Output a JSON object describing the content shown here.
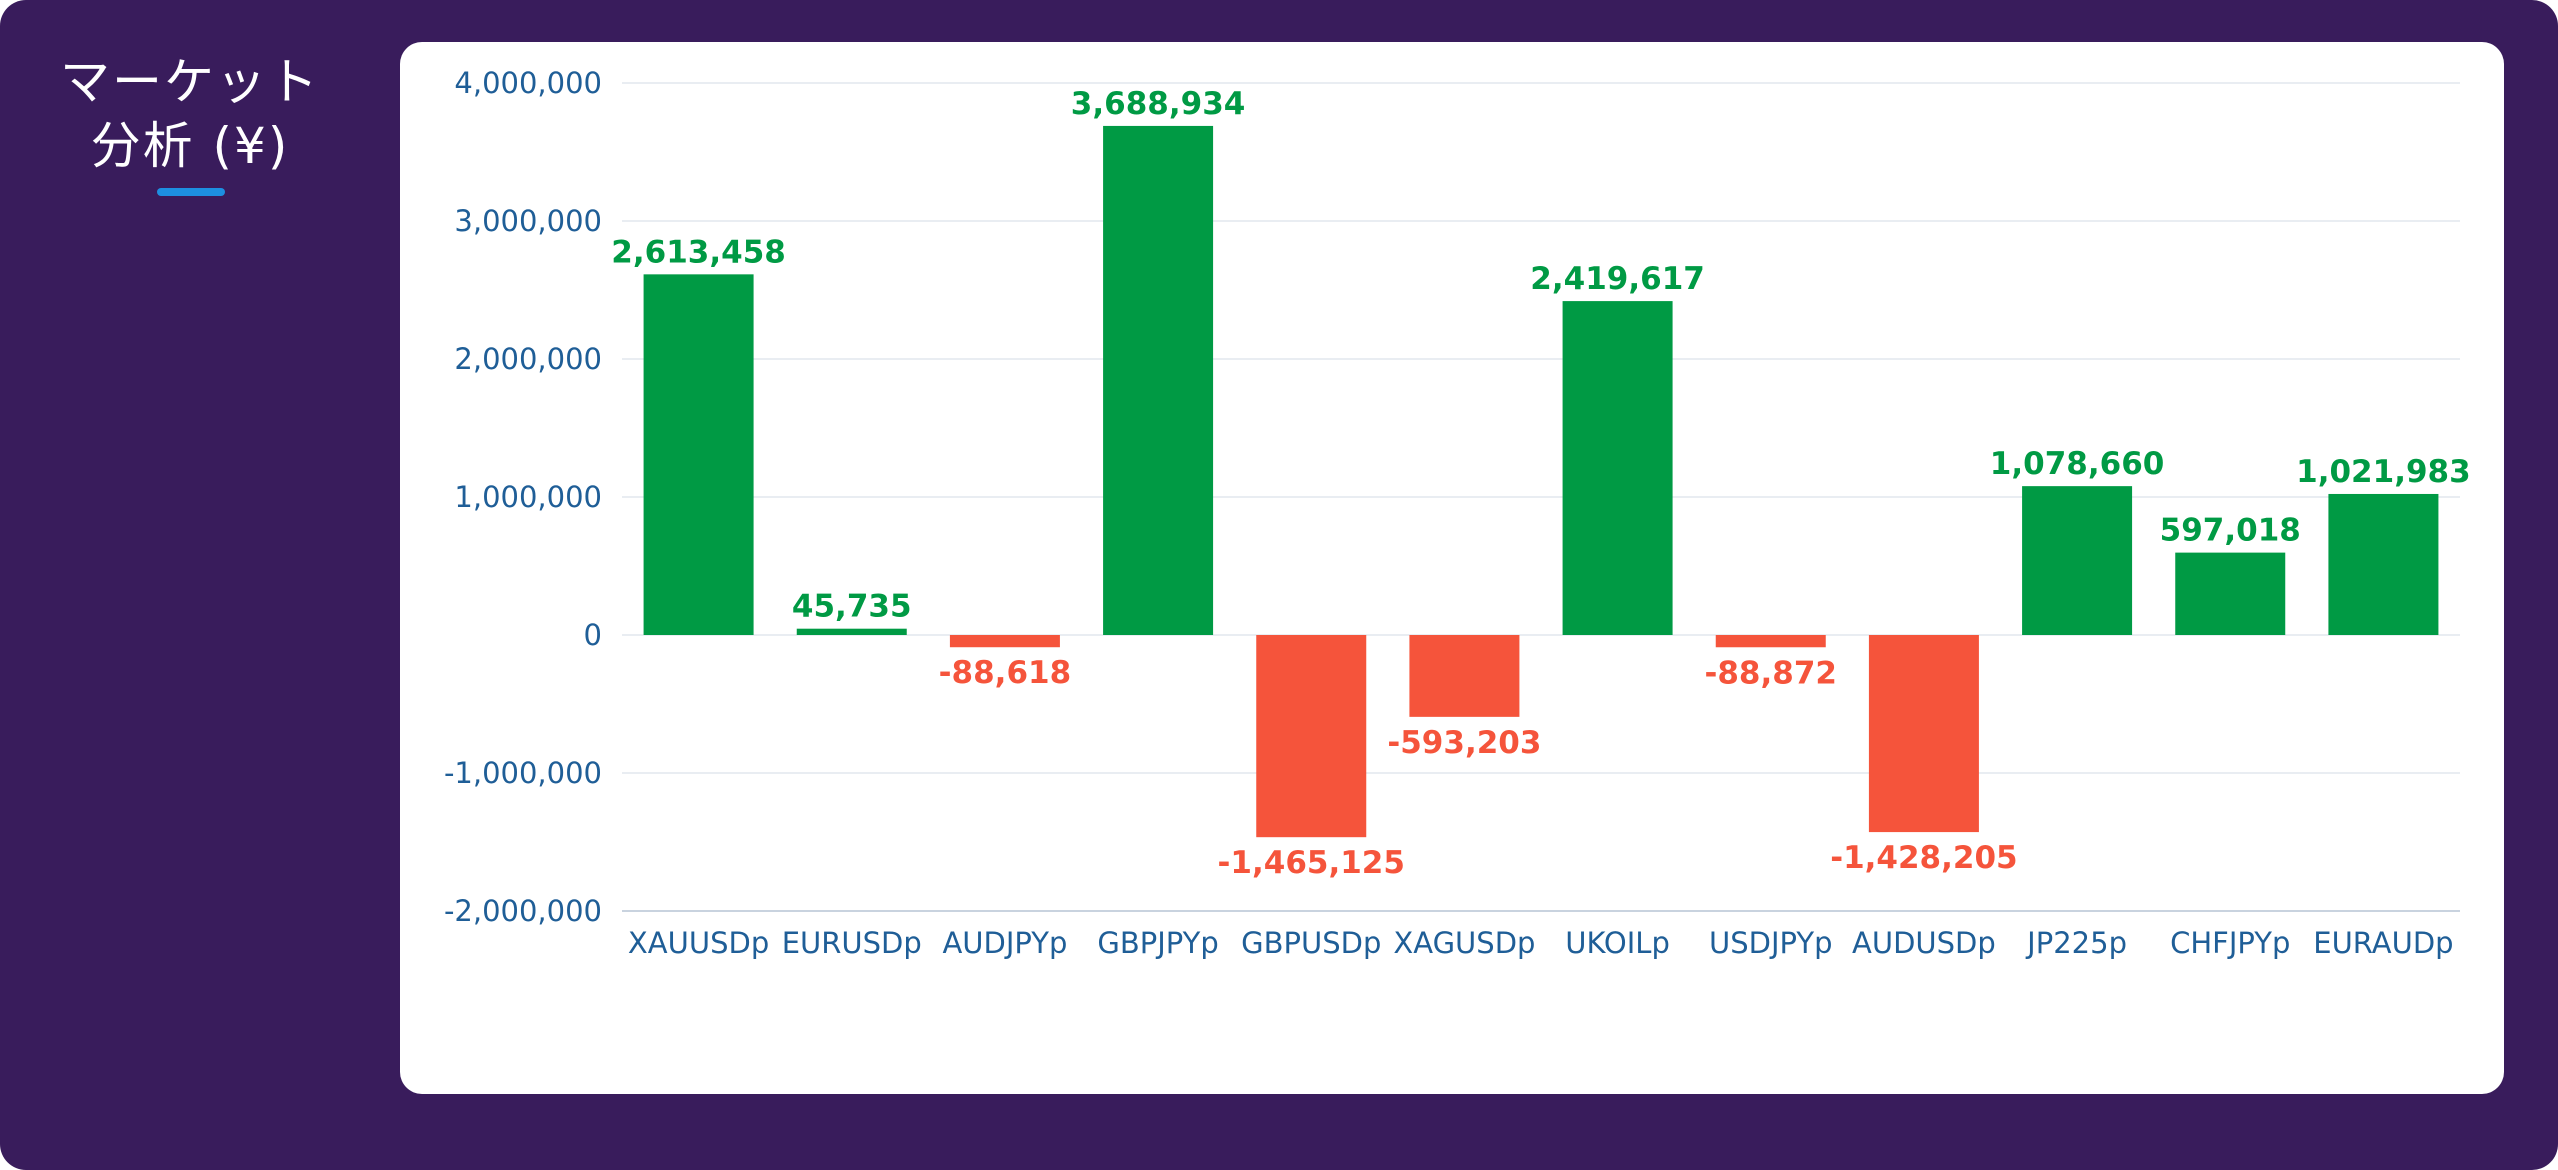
{
  "header": {
    "title_line1": "マーケット",
    "title_line2": "分析 (¥)"
  },
  "colors": {
    "frame": "#391c5c",
    "positive": "#009a44",
    "negative": "#f5543b",
    "axis_text": "#1f5e97",
    "accent": "#1d8fe1"
  },
  "chart_data": {
    "type": "bar",
    "title": "",
    "xlabel": "",
    "ylabel": "",
    "categories": [
      "XAUUSDp",
      "EURUSDp",
      "AUDJPYp",
      "GBPJPYp",
      "GBPUSDp",
      "XAGUSDp",
      "UKOILp",
      "USDJPYp",
      "AUDUSDp",
      "JP225p",
      "CHFJPYp",
      "EURAUDp"
    ],
    "values": [
      2613458,
      45735,
      -88618,
      3688934,
      -1465125,
      -593203,
      2419617,
      -88872,
      -1428205,
      1078660,
      597018,
      1021983
    ],
    "value_labels": [
      "2,613,458",
      "45,735",
      "-88,618",
      "3,688,934",
      "-1,465,125",
      "-593,203",
      "2,419,617",
      "-88,872",
      "-1,428,205",
      "1,078,660",
      "597,018",
      "1,021,983"
    ],
    "ylim": [
      -2000000,
      4000000
    ],
    "yticks": [
      4000000,
      3000000,
      2000000,
      1000000,
      0,
      -1000000,
      -2000000
    ],
    "ytick_labels": [
      "4,000,000",
      "3,000,000",
      "2,000,000",
      "1,000,000",
      "0",
      "-1,000,000",
      "-2,000,000"
    ],
    "grid": true,
    "legend": "none"
  }
}
